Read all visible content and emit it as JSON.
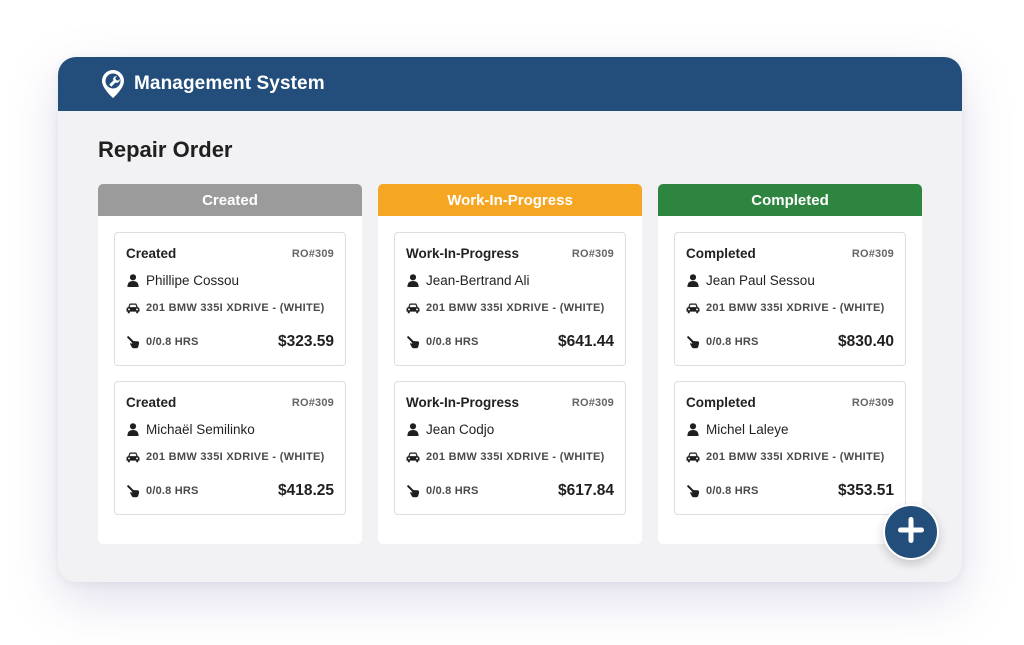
{
  "app": {
    "title": "Management System",
    "logo_icon": "map-pin-wrench-icon"
  },
  "page": {
    "title": "Repair Order"
  },
  "colors": {
    "header": "#234e7c",
    "created": "#9b9b9b",
    "in_progress": "#f5a623",
    "completed": "#2e8540"
  },
  "columns": [
    {
      "name": "Created",
      "color": "#9b9b9b",
      "cards": [
        {
          "status": "Created",
          "ro": "RO#309",
          "customer": "Phillipe Cossou",
          "vehicle": "201 BMW 335I XDRIVE - (WHITE)",
          "hours": "0/0.8 HRS",
          "price": "$323.59"
        },
        {
          "status": "Created",
          "ro": "RO#309",
          "customer": "Michaël Semilinko",
          "vehicle": "201 BMW 335I XDRIVE - (WHITE)",
          "hours": "0/0.8 HRS",
          "price": "$418.25"
        }
      ]
    },
    {
      "name": "Work-In-Progress",
      "color": "#f5a623",
      "cards": [
        {
          "status": "Work-In-Progress",
          "ro": "RO#309",
          "customer": "Jean-Bertrand Ali",
          "vehicle": "201 BMW 335I XDRIVE - (WHITE)",
          "hours": "0/0.8 HRS",
          "price": "$641.44"
        },
        {
          "status": "Work-In-Progress",
          "ro": "RO#309",
          "customer": "Jean Codjo",
          "vehicle": "201 BMW 335I XDRIVE - (WHITE)",
          "hours": "0/0.8 HRS",
          "price": "$617.84"
        }
      ]
    },
    {
      "name": "Completed",
      "color": "#2e8540",
      "cards": [
        {
          "status": "Completed",
          "ro": "RO#309",
          "customer": "Jean Paul Sessou",
          "vehicle": "201 BMW 335I XDRIVE - (WHITE)",
          "hours": "0/0.8 HRS",
          "price": "$830.40"
        },
        {
          "status": "Completed",
          "ro": "RO#309",
          "customer": "Michel Laleye",
          "vehicle": "201 BMW 335I XDRIVE - (WHITE)",
          "hours": "0/0.8 HRS",
          "price": "$353.51"
        }
      ]
    }
  ],
  "icons": {
    "customer": "person-icon",
    "vehicle": "car-icon",
    "hours": "hand-pointer-icon",
    "add": "plus-icon"
  }
}
